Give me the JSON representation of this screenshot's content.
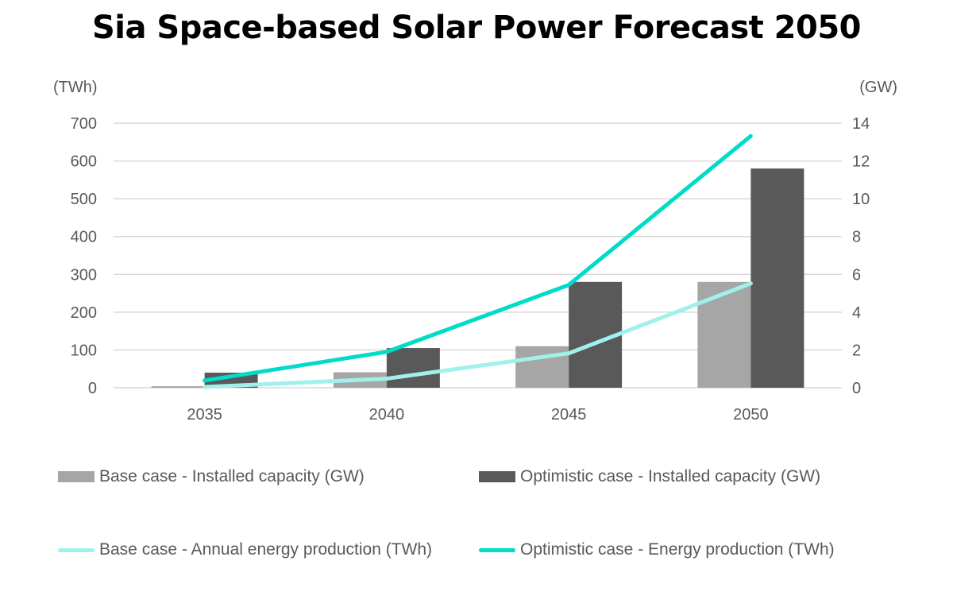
{
  "chart_data": {
    "type": "bar+line",
    "title": "Sia Space-based Solar Power Forecast 2050",
    "y_left_label": "(TWh)",
    "y_right_label": "(GW)",
    "ylim_left": [
      0,
      700
    ],
    "ylim_right": [
      0,
      14
    ],
    "yticks_left": [
      "0",
      "100",
      "200",
      "300",
      "400",
      "500",
      "600",
      "700"
    ],
    "yticks_right": [
      "0",
      "2",
      "4",
      "6",
      "8",
      "10",
      "12",
      "14"
    ],
    "categories": [
      "2035",
      "2040",
      "2045",
      "2050"
    ],
    "grid": true,
    "legend_placement": "bottom",
    "series": [
      {
        "name": "Base case - Installed capacity (GW)",
        "type": "bar",
        "axis": "right",
        "color": "#a6a6a6",
        "values": [
          0.08,
          0.82,
          2.2,
          5.6
        ]
      },
      {
        "name": "Optimistic case - Installed capacity (GW)",
        "type": "bar",
        "axis": "right",
        "color": "#595959",
        "values": [
          0.8,
          2.1,
          5.6,
          11.6
        ]
      },
      {
        "name": "Base case - Annual energy production (TWh)",
        "type": "line",
        "axis": "left",
        "color": "#a0f0ec",
        "values": [
          2,
          24,
          91,
          276
        ]
      },
      {
        "name": "Optimistic case - Energy production (TWh)",
        "type": "line",
        "axis": "left",
        "color": "#00dcc8",
        "values": [
          19,
          95,
          272,
          666
        ]
      }
    ]
  }
}
